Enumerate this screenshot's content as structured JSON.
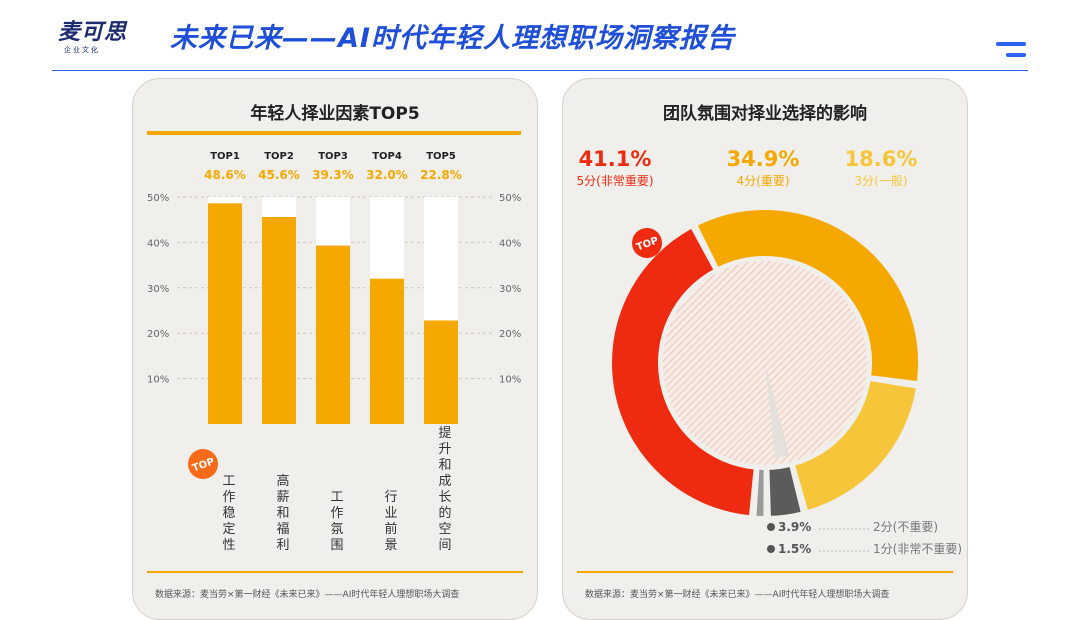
{
  "header": {
    "logo_text": "麦可思",
    "logo_sub": "企业文化",
    "title": "未来已来——AI时代年轻人理想职场洞察报告"
  },
  "colors": {
    "accent": "#f5a800",
    "brand": "#1f4fd8",
    "red": "#ee2b10",
    "gold": "#f6c53a"
  },
  "chart_data": [
    {
      "type": "bar",
      "title": "年轻人择业因素TOP5",
      "categories": [
        "工作稳定性",
        "高薪和福利",
        "工作氛围",
        "行业前景",
        "提升和成长的空间"
      ],
      "ranks": [
        "TOP1",
        "TOP2",
        "TOP3",
        "TOP4",
        "TOP5"
      ],
      "values": [
        48.6,
        45.6,
        39.3,
        32.0,
        22.8
      ],
      "value_labels": [
        "48.6%",
        "45.6%",
        "39.3%",
        "32.0%",
        "22.8%"
      ],
      "ylim": [
        0,
        50
      ],
      "yticks": [
        "10%",
        "20%",
        "30%",
        "40%",
        "50%"
      ],
      "badge": "TOP",
      "grid": true
    },
    {
      "type": "pie",
      "title": "团队氛围对择业选择的影响",
      "slices": [
        {
          "label": "5分(非常重要)",
          "value": 41.1,
          "value_label": "41.1%",
          "color": "#ee2b10"
        },
        {
          "label": "4分(重要)",
          "value": 34.9,
          "value_label": "34.9%",
          "color": "#f5a800"
        },
        {
          "label": "3分(一般)",
          "value": 18.6,
          "value_label": "18.6%",
          "color": "#f6c53a"
        },
        {
          "label": "2分(不重要)",
          "value": 3.9,
          "value_label": "3.9%",
          "color": "#5b5b5b"
        },
        {
          "label": "1分(非常不重要)",
          "value": 1.5,
          "value_label": "1.5%",
          "color": "#9a9a9a"
        }
      ],
      "badge": "TOP"
    }
  ],
  "footer": {
    "source": "数据来源：麦当劳×第一财经《未来已来》——AI时代年轻人理想职场大调查"
  }
}
